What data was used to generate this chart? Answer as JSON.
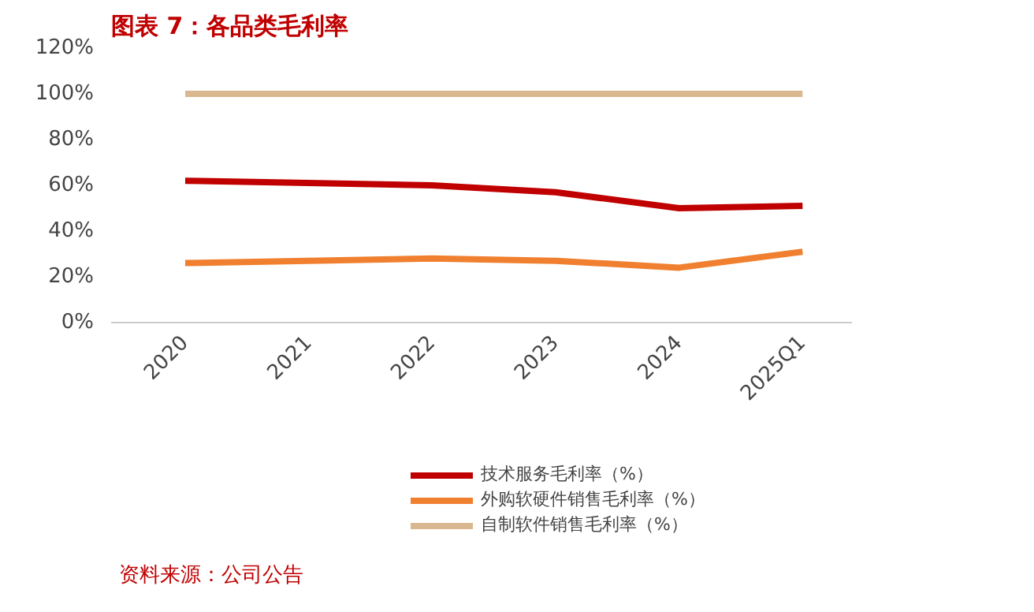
{
  "chart_data": {
    "type": "line",
    "title": "图表 7：各品类毛利率",
    "categories": [
      "2020",
      "2021",
      "2022",
      "2023",
      "2024",
      "2025Q1"
    ],
    "series": [
      {
        "name": "技术服务毛利率（%）",
        "color": "#c00000",
        "values": [
          62,
          61,
          60,
          57,
          50,
          51
        ]
      },
      {
        "name": "外购软硬件销售毛利率（%）",
        "color": "#f08030",
        "values": [
          26,
          27,
          28,
          27,
          24,
          31
        ]
      },
      {
        "name": "自制软件销售毛利率（%）",
        "color": "#d9b88f",
        "values": [
          100,
          100,
          100,
          100,
          100,
          100
        ]
      }
    ],
    "ylim": [
      0,
      120
    ],
    "yticks": [
      {
        "value": 0,
        "label": "0%"
      },
      {
        "value": 20,
        "label": "20%"
      },
      {
        "value": 40,
        "label": "40%"
      },
      {
        "value": 60,
        "label": "60%"
      },
      {
        "value": 80,
        "label": "80%"
      },
      {
        "value": 100,
        "label": "100%"
      },
      {
        "value": 120,
        "label": "120%"
      }
    ],
    "legend": "bottom",
    "grid": false,
    "annotations": [
      "资料来源：公司公告"
    ]
  }
}
